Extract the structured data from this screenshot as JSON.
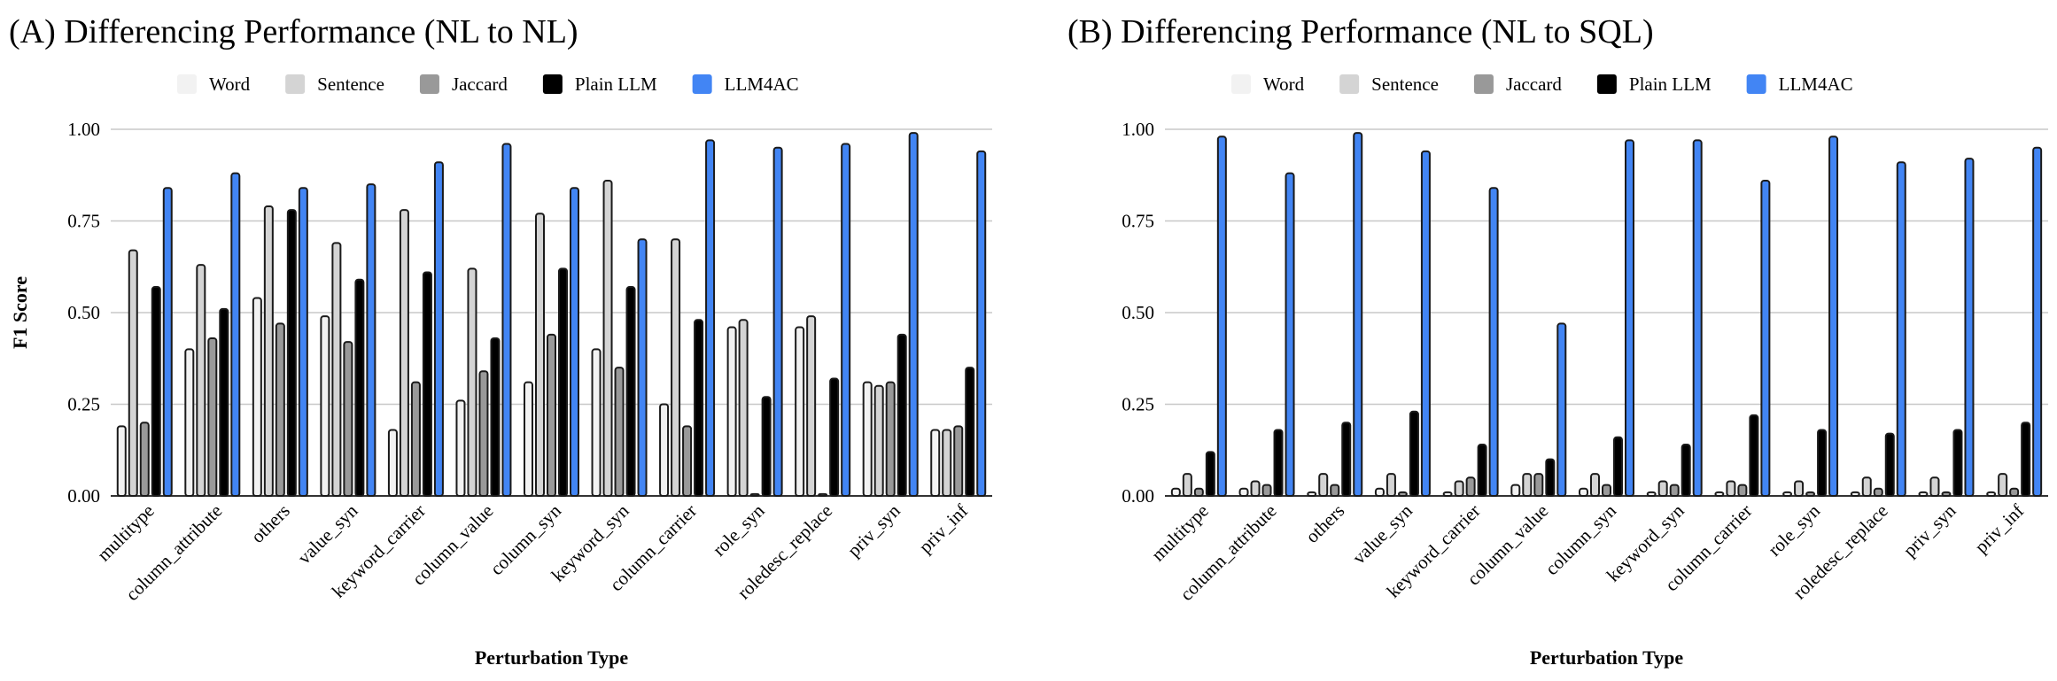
{
  "colors": {
    "Word": "#f2f2f2",
    "Sentence": "#d4d4d4",
    "Jaccard": "#999999",
    "Plain LLM": "#000000",
    "LLM4AC": "#4285f4"
  },
  "chart_data": [
    {
      "type": "bar",
      "title": "(A) Differencing Performance (NL to NL)",
      "xlabel": "Perturbation Type",
      "ylabel": "F1 Score",
      "ylim": [
        0,
        1
      ],
      "yticks": [
        "0.00",
        "0.25",
        "0.50",
        "0.75",
        "1.00"
      ],
      "legend": [
        "Word",
        "Sentence",
        "Jaccard",
        "Plain LLM",
        "LLM4AC"
      ],
      "categories": [
        "multitype",
        "column_attribute",
        "others",
        "value_syn",
        "keyword_carrier",
        "column_value",
        "column_syn",
        "keyword_syn",
        "column_carrier",
        "role_syn",
        "roledesc_replace",
        "priv_syn",
        "priv_inf"
      ],
      "series": [
        {
          "name": "Word",
          "values": [
            0.19,
            0.4,
            0.54,
            0.49,
            0.18,
            0.26,
            0.31,
            0.4,
            0.25,
            0.46,
            0.46,
            0.31,
            0.18
          ]
        },
        {
          "name": "Sentence",
          "values": [
            0.67,
            0.63,
            0.79,
            0.69,
            0.78,
            0.62,
            0.77,
            0.86,
            0.7,
            0.48,
            0.49,
            0.3,
            0.18
          ]
        },
        {
          "name": "Jaccard",
          "values": [
            0.2,
            0.43,
            0.47,
            0.42,
            0.31,
            0.34,
            0.44,
            0.35,
            0.19,
            0.005,
            0.005,
            0.31,
            0.19
          ]
        },
        {
          "name": "Plain LLM",
          "values": [
            0.57,
            0.51,
            0.78,
            0.59,
            0.61,
            0.43,
            0.62,
            0.57,
            0.48,
            0.27,
            0.32,
            0.44,
            0.35
          ]
        },
        {
          "name": "LLM4AC",
          "values": [
            0.84,
            0.88,
            0.84,
            0.85,
            0.91,
            0.96,
            0.84,
            0.7,
            0.97,
            0.95,
            0.96,
            0.99,
            0.94
          ]
        }
      ]
    },
    {
      "type": "bar",
      "title": "(B) Differencing Performance (NL to SQL)",
      "xlabel": "Perturbation Type",
      "ylabel": "",
      "ylim": [
        0,
        1
      ],
      "yticks": [
        "0.00",
        "0.25",
        "0.50",
        "0.75",
        "1.00"
      ],
      "legend": [
        "Word",
        "Sentence",
        "Jaccard",
        "Plain LLM",
        "LLM4AC"
      ],
      "categories": [
        "multitype",
        "column_attribute",
        "others",
        "value_syn",
        "keyword_carrier",
        "column_value",
        "column_syn",
        "keyword_syn",
        "column_carrier",
        "role_syn",
        "roledesc_replace",
        "priv_syn",
        "priv_inf"
      ],
      "series": [
        {
          "name": "Word",
          "values": [
            0.02,
            0.02,
            0.01,
            0.02,
            0.01,
            0.03,
            0.02,
            0.01,
            0.01,
            0.01,
            0.01,
            0.01,
            0.01
          ]
        },
        {
          "name": "Sentence",
          "values": [
            0.06,
            0.04,
            0.06,
            0.06,
            0.04,
            0.06,
            0.06,
            0.04,
            0.04,
            0.04,
            0.05,
            0.05,
            0.06
          ]
        },
        {
          "name": "Jaccard",
          "values": [
            0.02,
            0.03,
            0.03,
            0.01,
            0.05,
            0.06,
            0.03,
            0.03,
            0.03,
            0.01,
            0.02,
            0.01,
            0.02
          ]
        },
        {
          "name": "Plain LLM",
          "values": [
            0.12,
            0.18,
            0.2,
            0.23,
            0.14,
            0.1,
            0.16,
            0.14,
            0.22,
            0.18,
            0.17,
            0.18,
            0.2
          ]
        },
        {
          "name": "LLM4AC",
          "values": [
            0.98,
            0.88,
            0.99,
            0.94,
            0.84,
            0.47,
            0.97,
            0.97,
            0.86,
            0.98,
            0.91,
            0.92,
            0.95
          ]
        }
      ]
    }
  ]
}
